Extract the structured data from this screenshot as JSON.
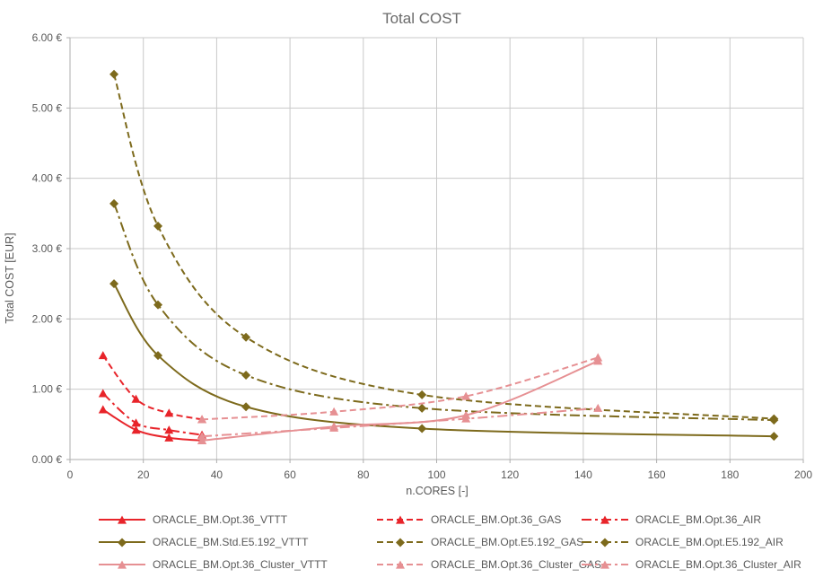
{
  "chart_data": {
    "type": "line",
    "title": "Total COST",
    "xlabel": "n.CORES [-]",
    "ylabel": "Total COST [EUR]",
    "xlim": [
      0,
      200
    ],
    "ylim": [
      0,
      6
    ],
    "x_ticks": [
      0,
      20,
      40,
      60,
      80,
      100,
      120,
      140,
      160,
      180,
      200
    ],
    "y_ticks": [
      0,
      1,
      2,
      3,
      4,
      5,
      6
    ],
    "y_tick_labels": [
      "0.00 €",
      "1.00 €",
      "2.00 €",
      "3.00 €",
      "4.00 €",
      "5.00 €",
      "6.00 €"
    ],
    "grid": true,
    "legend_position": "bottom",
    "colors": {
      "red": "#e8242a",
      "olive": "#7d6a1c",
      "pink": "#e69093",
      "gridline": "#c9c9c9",
      "axis_line": "#aeaeae",
      "text_gray": "#595959"
    },
    "series": [
      {
        "name": "ORACLE_BM.Opt.36_VTTT",
        "color": "#e8242a",
        "style": "solid",
        "marker": "triangle",
        "x": [
          9,
          18,
          27,
          36
        ],
        "y": [
          0.71,
          0.42,
          0.31,
          0.27
        ]
      },
      {
        "name": "ORACLE_BM.Opt.36_GAS",
        "color": "#e8242a",
        "style": "dashed",
        "marker": "triangle",
        "x": [
          9,
          18,
          27,
          36
        ],
        "y": [
          1.48,
          0.86,
          0.66,
          0.57
        ]
      },
      {
        "name": "ORACLE_BM.Opt.36_AIR",
        "color": "#e8242a",
        "style": "dashdot",
        "marker": "triangle",
        "x": [
          9,
          18,
          27,
          36
        ],
        "y": [
          0.94,
          0.52,
          0.42,
          0.35
        ]
      },
      {
        "name": "ORACLE_BM.Std.E5.192_VTTT",
        "color": "#7d6a1c",
        "style": "solid",
        "marker": "diamond",
        "x": [
          12,
          24,
          48,
          96,
          192
        ],
        "y": [
          2.5,
          1.48,
          0.75,
          0.44,
          0.33
        ]
      },
      {
        "name": "ORACLE_BM.Opt.E5.192_GAS",
        "color": "#7d6a1c",
        "style": "dashed",
        "marker": "diamond",
        "x": [
          12,
          24,
          48,
          96,
          192
        ],
        "y": [
          5.48,
          3.32,
          1.74,
          0.92,
          0.58
        ]
      },
      {
        "name": "ORACLE_BM.Opt.E5.192_AIR",
        "color": "#7d6a1c",
        "style": "dashdot",
        "marker": "diamond",
        "x": [
          12,
          24,
          48,
          96,
          192
        ],
        "y": [
          3.64,
          2.2,
          1.2,
          0.73,
          0.56
        ]
      },
      {
        "name": "ORACLE_BM.Opt.36_Cluster_VTTT",
        "color": "#e69093",
        "style": "solid",
        "marker": "triangle",
        "x": [
          36,
          72,
          108,
          144
        ],
        "y": [
          0.27,
          0.47,
          0.63,
          1.4
        ]
      },
      {
        "name": "ORACLE_BM.Opt.36_Cluster_GAS",
        "color": "#e69093",
        "style": "dashed",
        "marker": "triangle",
        "x": [
          36,
          72,
          108,
          144
        ],
        "y": [
          0.57,
          0.68,
          0.9,
          1.45
        ]
      },
      {
        "name": "ORACLE_BM.Opt.36_Cluster_AIR",
        "color": "#e69093",
        "style": "dashdot",
        "marker": "triangle",
        "x": [
          36,
          72,
          108,
          144
        ],
        "y": [
          0.33,
          0.45,
          0.58,
          0.73
        ]
      }
    ]
  }
}
